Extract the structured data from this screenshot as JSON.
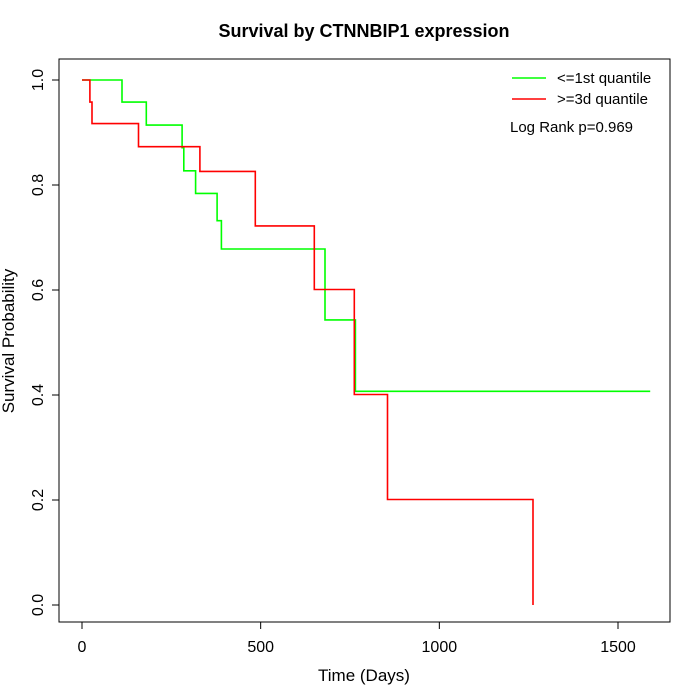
{
  "chart_data": {
    "type": "line",
    "step": true,
    "title": "Survival by CTNNBIP1 expression",
    "xlabel": "Time (Days)",
    "ylabel": "Survival Probability",
    "xlim": [
      0,
      1650
    ],
    "ylim": [
      0,
      1.0
    ],
    "x_ticks": [
      0,
      500,
      1000,
      1500
    ],
    "x_tick_labels": [
      "0",
      "500",
      "1000",
      "1500"
    ],
    "y_ticks": [
      0,
      0.2,
      0.4,
      0.6,
      0.8,
      1.0
    ],
    "y_tick_labels": [
      "0.0",
      "0.2",
      "0.4",
      "0.6",
      "0.8",
      "1.0"
    ],
    "grid": false,
    "legend_position": "top-right",
    "annotation": "Log Rank p=0.969",
    "series": [
      {
        "name": "<=1st quantile",
        "color": "#00ff00",
        "points": [
          [
            0,
            1.0
          ],
          [
            112,
            1.0
          ],
          [
            112,
            0.958
          ],
          [
            180,
            0.958
          ],
          [
            180,
            0.914
          ],
          [
            280,
            0.914
          ],
          [
            280,
            0.871
          ],
          [
            285,
            0.871
          ],
          [
            285,
            0.827
          ],
          [
            318,
            0.827
          ],
          [
            318,
            0.784
          ],
          [
            378,
            0.784
          ],
          [
            378,
            0.732
          ],
          [
            390,
            0.732
          ],
          [
            390,
            0.678
          ],
          [
            680,
            0.678
          ],
          [
            680,
            0.543
          ],
          [
            765,
            0.543
          ],
          [
            765,
            0.407
          ],
          [
            1590,
            0.407
          ]
        ]
      },
      {
        "name": ">=3d quantile",
        "color": "#ff0000",
        "points": [
          [
            0,
            1.0
          ],
          [
            22,
            1.0
          ],
          [
            22,
            0.958
          ],
          [
            28,
            0.958
          ],
          [
            28,
            0.917
          ],
          [
            158,
            0.917
          ],
          [
            158,
            0.873
          ],
          [
            330,
            0.873
          ],
          [
            330,
            0.826
          ],
          [
            485,
            0.826
          ],
          [
            485,
            0.722
          ],
          [
            650,
            0.722
          ],
          [
            650,
            0.601
          ],
          [
            762,
            0.601
          ],
          [
            762,
            0.401
          ],
          [
            855,
            0.401
          ],
          [
            855,
            0.201
          ],
          [
            1262,
            0.201
          ],
          [
            1262,
            0.0
          ]
        ]
      }
    ]
  }
}
